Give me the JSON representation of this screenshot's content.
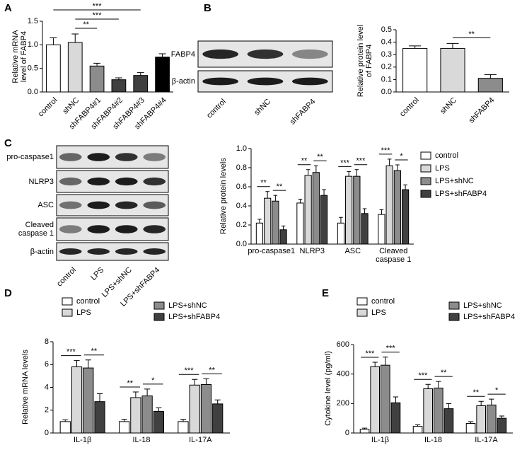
{
  "panels": [
    "A",
    "B",
    "C",
    "D",
    "E"
  ],
  "blots": [
    {
      "rows": [
        "FABP4",
        "β-actin"
      ],
      "lanes": [
        "control",
        "shNC",
        "shFABP4"
      ]
    },
    {
      "rows": [
        "pro-caspase1",
        "NLRP3",
        "ASC",
        "Cleaved caspase 1",
        "β-actin"
      ],
      "lanes": [
        "control",
        "LPS",
        "LPS+shNC",
        "LPS+shFABP4"
      ]
    }
  ],
  "chart_data": [
    {
      "type": "bar",
      "ylabel": "Relative mRNA level of FABP4",
      "categories": [
        "control",
        "shNC",
        "shFABP4#1",
        "shFABP4#2",
        "shFABP4#3",
        "shFABP4#4"
      ],
      "values": [
        1.0,
        1.05,
        0.55,
        0.26,
        0.35,
        0.74
      ],
      "errors": [
        0.15,
        0.18,
        0.06,
        0.04,
        0.06,
        0.07
      ],
      "colors": [
        "#ffffff",
        "#d9d9d9",
        "#8c8c8c",
        "#404040",
        "#404040",
        "#000000"
      ],
      "ylim": [
        0,
        1.5
      ],
      "yticks": [
        {
          "value": 0,
          "label": "0.0"
        },
        0.5,
        {
          "value": 1,
          "label": "1.0"
        },
        {
          "value": 1.5,
          "label": "1.5"
        }
      ],
      "significance": [
        "**",
        "***",
        "***"
      ]
    },
    {
      "type": "bar",
      "ylabel": "Relative protein level of FABP4",
      "categories": [
        "control",
        "shNC",
        "shFABP4"
      ],
      "values": [
        0.35,
        0.35,
        0.11
      ],
      "errors": [
        0.02,
        0.04,
        0.03
      ],
      "colors": [
        "#ffffff",
        "#d9d9d9",
        "#8c8c8c"
      ],
      "ylim": [
        0,
        0.5
      ],
      "yticks": [
        {
          "value": 0,
          "label": "0.0"
        },
        0.1,
        0.2,
        0.3,
        0.4,
        0.5
      ],
      "significance": [
        "**"
      ]
    },
    {
      "type": "grouped_bar",
      "ylabel": "Relative protein levels",
      "legend": "right",
      "categories": [
        "pro-caspase1",
        "NLRP3",
        "ASC",
        "Cleaved caspase 1"
      ],
      "series": [
        {
          "name": "control",
          "color": "#ffffff",
          "values": [
            0.22,
            0.43,
            0.22,
            0.31
          ],
          "errors": [
            0.04,
            0.04,
            0.06,
            0.05
          ]
        },
        {
          "name": "LPS",
          "color": "#d9d9d9",
          "values": [
            0.48,
            0.72,
            0.71,
            0.82
          ],
          "errors": [
            0.07,
            0.06,
            0.05,
            0.07
          ]
        },
        {
          "name": "LPS+shNC",
          "color": "#8c8c8c",
          "values": [
            0.45,
            0.75,
            0.71,
            0.77
          ],
          "errors": [
            0.06,
            0.07,
            0.07,
            0.06
          ]
        },
        {
          "name": "LPS+shFABP4",
          "color": "#404040",
          "values": [
            0.15,
            0.51,
            0.32,
            0.57
          ],
          "errors": [
            0.04,
            0.06,
            0.05,
            0.05
          ]
        }
      ],
      "ylim": [
        0,
        1.0
      ],
      "yticks": [
        {
          "value": 0,
          "label": "0.0"
        },
        0.2,
        0.4,
        0.6,
        0.8,
        {
          "value": 1,
          "label": "1.0"
        }
      ],
      "significance": [
        [
          "**",
          "**"
        ],
        [
          "**",
          "**"
        ],
        [
          "***",
          "***"
        ],
        [
          "***",
          "*"
        ]
      ]
    },
    {
      "type": "grouped_bar",
      "ylabel": "Relative mRNA levels",
      "legend": "top",
      "categories": [
        "IL-1β",
        "IL-18",
        "IL-17A"
      ],
      "series": [
        {
          "name": "control",
          "color": "#ffffff",
          "values": [
            1.0,
            1.0,
            1.0
          ],
          "errors": [
            0.15,
            0.2,
            0.2
          ]
        },
        {
          "name": "LPS",
          "color": "#d9d9d9",
          "values": [
            5.8,
            3.1,
            4.2
          ],
          "errors": [
            0.55,
            0.5,
            0.5
          ]
        },
        {
          "name": "LPS+shNC",
          "color": "#8c8c8c",
          "values": [
            5.7,
            3.25,
            4.25
          ],
          "errors": [
            0.7,
            0.6,
            0.5
          ]
        },
        {
          "name": "LPS+shFABP4",
          "color": "#404040",
          "values": [
            2.75,
            1.9,
            2.55
          ],
          "errors": [
            0.7,
            0.3,
            0.35
          ]
        }
      ],
      "ylim": [
        0,
        8
      ],
      "yticks": [
        0,
        2,
        4,
        6,
        8
      ],
      "significance": [
        [
          "***",
          "**"
        ],
        [
          "**",
          "*"
        ],
        [
          "***",
          "**"
        ]
      ]
    },
    {
      "type": "grouped_bar",
      "ylabel": "Cytokine level (pg/ml)",
      "legend": "top",
      "categories": [
        "IL-1β",
        "IL-18",
        "IL-17A"
      ],
      "series": [
        {
          "name": "control",
          "color": "#ffffff",
          "values": [
            25,
            45,
            65
          ],
          "errors": [
            8,
            10,
            12
          ]
        },
        {
          "name": "LPS",
          "color": "#d9d9d9",
          "values": [
            450,
            300,
            185
          ],
          "errors": [
            30,
            30,
            30
          ]
        },
        {
          "name": "LPS+shNC",
          "color": "#8c8c8c",
          "values": [
            460,
            305,
            190
          ],
          "errors": [
            55,
            45,
            40
          ]
        },
        {
          "name": "LPS+shFABP4",
          "color": "#404040",
          "values": [
            205,
            165,
            100
          ],
          "errors": [
            40,
            35,
            15
          ]
        }
      ],
      "ylim": [
        0,
        600
      ],
      "yticks": [
        0,
        200,
        400,
        600
      ],
      "significance": [
        [
          "***",
          "***"
        ],
        [
          "***",
          "**"
        ],
        [
          "**",
          "*"
        ]
      ]
    }
  ]
}
